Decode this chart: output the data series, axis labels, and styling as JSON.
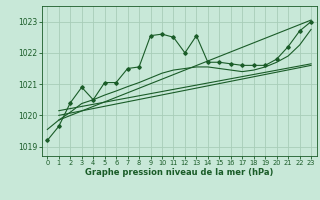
{
  "title": "Graphe pression niveau de la mer (hPa)",
  "bg_color": "#c8e8d8",
  "grid_color": "#a8cdb8",
  "line_color": "#1a5c28",
  "xlim": [
    -0.5,
    23.5
  ],
  "ylim": [
    1018.7,
    1023.5
  ],
  "yticks": [
    1019,
    1020,
    1021,
    1022,
    1023
  ],
  "xticks": [
    0,
    1,
    2,
    3,
    4,
    5,
    6,
    7,
    8,
    9,
    10,
    11,
    12,
    13,
    14,
    15,
    16,
    17,
    18,
    19,
    20,
    21,
    22,
    23
  ],
  "main_line_x": [
    0,
    1,
    2,
    3,
    4,
    5,
    6,
    7,
    8,
    9,
    10,
    11,
    12,
    13,
    14,
    15,
    16,
    17,
    18,
    19,
    20,
    21,
    22,
    23
  ],
  "main_line_y": [
    1019.2,
    1019.65,
    1020.4,
    1020.9,
    1020.5,
    1021.05,
    1021.05,
    1021.5,
    1021.55,
    1022.55,
    1022.6,
    1022.5,
    1022.0,
    1022.55,
    1021.7,
    1021.7,
    1021.65,
    1021.6,
    1021.6,
    1021.6,
    1021.8,
    1022.2,
    1022.7,
    1023.0
  ],
  "trend_line1_x": [
    1,
    23
  ],
  "trend_line1_y": [
    1019.85,
    1023.05
  ],
  "trend_line2_x": [
    1,
    23
  ],
  "trend_line2_y": [
    1020.0,
    1021.6
  ],
  "trend_line3_x": [
    1,
    23
  ],
  "trend_line3_y": [
    1020.15,
    1021.65
  ],
  "smooth_line_x": [
    0,
    1,
    2,
    3,
    4,
    5,
    6,
    7,
    8,
    9,
    10,
    11,
    12,
    13,
    14,
    15,
    16,
    17,
    18,
    19,
    20,
    21,
    22,
    23
  ],
  "smooth_line_y": [
    1019.55,
    1019.85,
    1020.1,
    1020.38,
    1020.5,
    1020.65,
    1020.78,
    1020.92,
    1021.05,
    1021.2,
    1021.35,
    1021.45,
    1021.5,
    1021.55,
    1021.55,
    1021.5,
    1021.45,
    1021.4,
    1021.45,
    1021.55,
    1021.7,
    1021.9,
    1022.25,
    1022.75
  ]
}
